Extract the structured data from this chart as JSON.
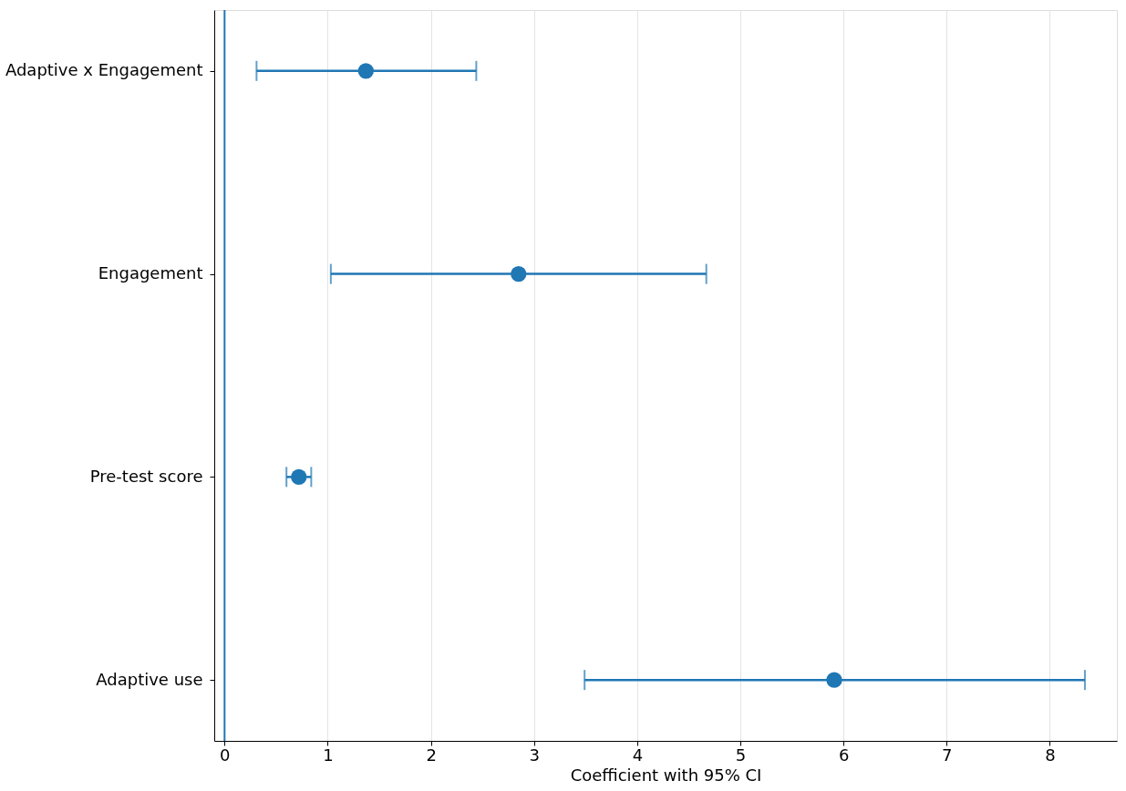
{
  "chart_data": {
    "type": "scatter",
    "orientation": "horizontal",
    "xlabel": "Coefficient with 95% CI",
    "categories": [
      "Adaptive x Engagement",
      "Engagement",
      "Pre-test score",
      "Adaptive use"
    ],
    "color": "#1f77b4",
    "values": [
      1.37,
      2.85,
      0.72,
      5.91
    ],
    "errors": [
      [
        0.31,
        2.44
      ],
      [
        1.03,
        4.67
      ],
      [
        0.6,
        0.84
      ],
      [
        3.49,
        8.34
      ]
    ],
    "xlim": [
      -0.1,
      8.65
    ],
    "xticks": [
      0,
      1,
      2,
      3,
      4,
      5,
      6,
      7,
      8
    ],
    "ref_lines": [
      {
        "axis": "x",
        "value": 0,
        "color": "#1f77b4"
      }
    ],
    "grid": "x",
    "marker": "circle"
  }
}
